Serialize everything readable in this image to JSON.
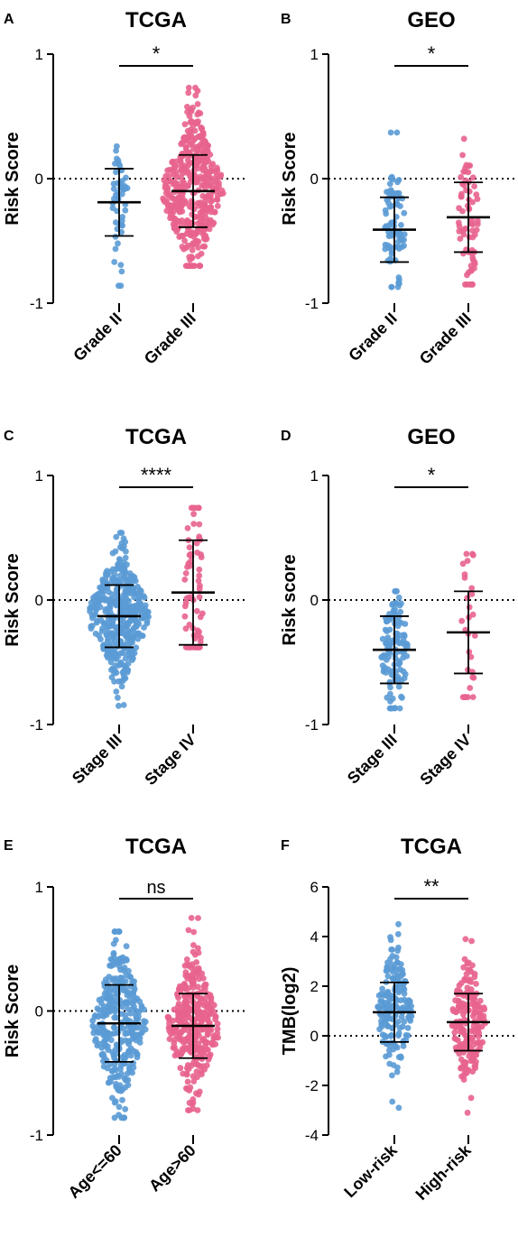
{
  "colors": {
    "group1": "#5b9bd5",
    "group2": "#e8638e",
    "axis": "#000000"
  },
  "chart_data": [
    {
      "panel": "A",
      "type": "scatter",
      "title": "TCGA",
      "ylabel": "Risk Score",
      "ylim": [
        -1,
        1
      ],
      "yticks": [
        -1,
        0,
        1
      ],
      "yticklabels": [
        "-1",
        "0",
        "1"
      ],
      "reference_line": 0,
      "categories": [
        "Grade II",
        "Grade III"
      ],
      "significance": "*",
      "groups": [
        {
          "label": "Grade II",
          "n": 50,
          "mean": -0.19,
          "sd": 0.27,
          "min": -0.86,
          "max": 0.26
        },
        {
          "label": "Grade III",
          "n": 420,
          "mean": -0.1,
          "sd": 0.29,
          "min": -0.7,
          "max": 0.73
        }
      ]
    },
    {
      "panel": "B",
      "type": "scatter",
      "title": "GEO",
      "ylabel": "Risk Score",
      "ylim": [
        -1,
        1
      ],
      "yticks": [
        -1,
        0,
        1
      ],
      "yticklabels": [
        "-1",
        "0",
        "1"
      ],
      "reference_line": 0,
      "categories": [
        "Grade II",
        "Grade III"
      ],
      "significance": "*",
      "groups": [
        {
          "label": "Grade II",
          "n": 80,
          "mean": -0.41,
          "sd": 0.26,
          "min": -0.87,
          "max": 0.37
        },
        {
          "label": "Grade III",
          "n": 70,
          "mean": -0.31,
          "sd": 0.28,
          "min": -0.85,
          "max": 0.32
        }
      ]
    },
    {
      "panel": "C",
      "type": "scatter",
      "title": "TCGA",
      "ylabel": "Risk Score",
      "ylim": [
        -1,
        1
      ],
      "yticks": [
        -1,
        0,
        1
      ],
      "yticklabels": [
        "-1",
        "0",
        "1"
      ],
      "reference_line": 0,
      "categories": [
        "Stage III",
        "Stage IV"
      ],
      "significance": "****",
      "groups": [
        {
          "label": "Stage III",
          "n": 420,
          "mean": -0.13,
          "sd": 0.25,
          "min": -0.85,
          "max": 0.54
        },
        {
          "label": "Stage IV",
          "n": 70,
          "mean": 0.06,
          "sd": 0.42,
          "min": -0.38,
          "max": 0.74
        }
      ]
    },
    {
      "panel": "D",
      "type": "scatter",
      "title": "GEO",
      "ylabel": "Risk score",
      "ylim": [
        -1,
        1
      ],
      "yticks": [
        -1,
        0,
        1
      ],
      "yticklabels": [
        "-1",
        "0",
        "1"
      ],
      "reference_line": 0,
      "categories": [
        "Stage III",
        "Stage IV"
      ],
      "significance": "*",
      "groups": [
        {
          "label": "Stage III",
          "n": 120,
          "mean": -0.4,
          "sd": 0.27,
          "min": -0.87,
          "max": 0.07
        },
        {
          "label": "Stage IV",
          "n": 30,
          "mean": -0.26,
          "sd": 0.33,
          "min": -0.78,
          "max": 0.37
        }
      ]
    },
    {
      "panel": "E",
      "type": "scatter",
      "title": "TCGA",
      "ylabel": "Risk Score",
      "ylim": [
        -1,
        1
      ],
      "yticks": [
        -1,
        0,
        1
      ],
      "yticklabels": [
        "-1",
        "0",
        "1"
      ],
      "reference_line": 0,
      "categories": [
        "Age<=60",
        "Age>60"
      ],
      "significance": "ns",
      "groups": [
        {
          "label": "Age<=60",
          "n": 330,
          "mean": -0.1,
          "sd": 0.31,
          "min": -0.86,
          "max": 0.64
        },
        {
          "label": "Age>60",
          "n": 330,
          "mean": -0.12,
          "sd": 0.26,
          "min": -0.8,
          "max": 0.75
        }
      ]
    },
    {
      "panel": "F",
      "type": "scatter",
      "title": "TCGA",
      "ylabel": "TMB(log2)",
      "ylim": [
        -4,
        6
      ],
      "yticks": [
        -4,
        -2,
        0,
        2,
        4,
        6
      ],
      "yticklabels": [
        "-4",
        "-2",
        "0",
        "2",
        "4",
        "6"
      ],
      "reference_line": 0,
      "categories": [
        "Low-risk",
        "High-risk"
      ],
      "significance": "**",
      "groups": [
        {
          "label": "Low-risk",
          "n": 190,
          "mean": 0.95,
          "sd": 1.2,
          "min": -2.9,
          "max": 4.5
        },
        {
          "label": "High-risk",
          "n": 190,
          "mean": 0.55,
          "sd": 1.15,
          "min": -3.1,
          "max": 3.9
        }
      ]
    }
  ]
}
